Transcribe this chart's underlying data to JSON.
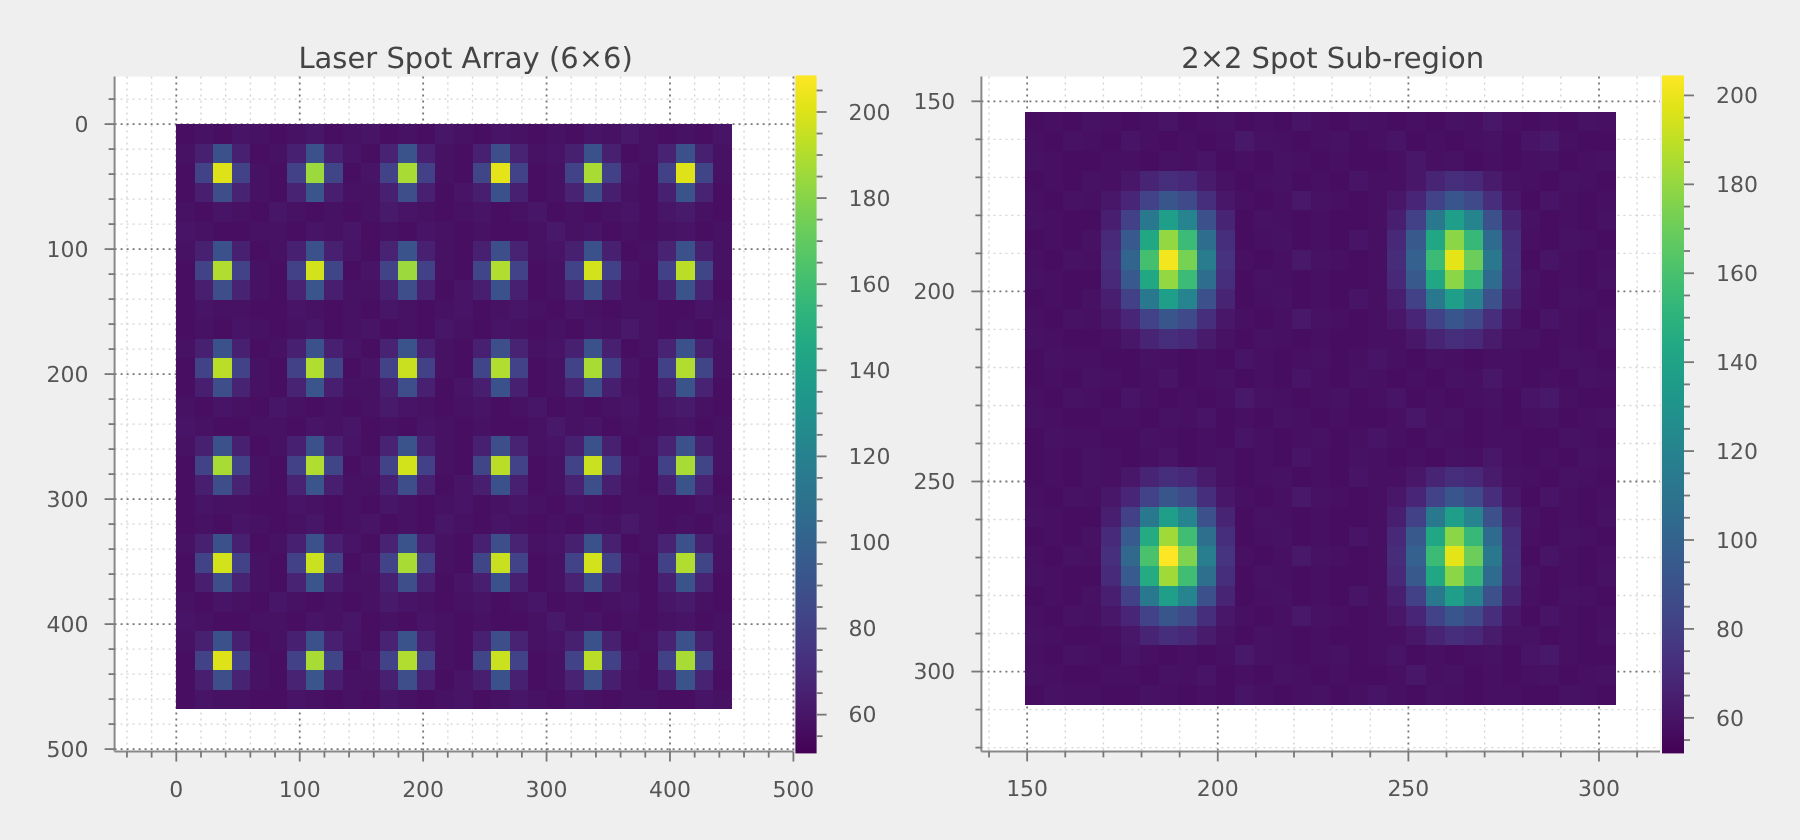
{
  "chart_data": [
    {
      "type": "heatmap",
      "title": "Laser Spot Array (6×6)",
      "x": [
        7.5,
        22.5,
        37.5,
        52.5,
        67.5,
        82.5,
        97.5,
        112.5,
        127.5,
        142.5,
        157.5,
        172.5,
        187.5,
        202.5,
        217.5,
        232.5,
        247.5,
        262.5,
        277.5,
        292.5,
        307.5,
        322.5,
        337.5,
        352.5,
        367.5,
        382.5,
        397.5,
        412.5,
        427.5,
        442.5
      ],
      "y": [
        7.8,
        23.4,
        39,
        54.6,
        70.2,
        85.8,
        101.4,
        117,
        132.6,
        148.2,
        163.8,
        179.4,
        195,
        210.6,
        226.2,
        241.8,
        257.4,
        273,
        288.6,
        304.2,
        319.8,
        335.4,
        351,
        366.6,
        382.2,
        397.8,
        413.4,
        429,
        444.6,
        460.2
      ],
      "cells": [
        [
          57,
          58,
          57,
          59,
          58,
          57,
          58,
          60,
          57,
          58,
          59,
          57,
          58,
          57,
          60,
          58,
          57,
          59,
          58,
          57,
          58,
          57,
          59,
          58,
          61,
          58,
          57,
          58,
          57,
          59
        ],
        [
          58,
          65,
          90,
          65,
          57,
          58,
          65,
          90,
          65,
          59,
          57,
          66,
          91,
          65,
          58,
          57,
          65,
          89,
          66,
          58,
          59,
          65,
          90,
          65,
          57,
          58,
          66,
          90,
          65,
          58
        ],
        [
          57,
          82,
          200,
          82,
          58,
          57,
          81,
          185,
          83,
          57,
          59,
          82,
          188,
          81,
          58,
          57,
          83,
          202,
          82,
          57,
          58,
          82,
          188,
          81,
          59,
          57,
          81,
          200,
          83,
          58
        ],
        [
          57,
          64,
          88,
          66,
          58,
          57,
          66,
          92,
          64,
          58,
          58,
          65,
          88,
          65,
          57,
          59,
          64,
          90,
          65,
          57,
          58,
          66,
          89,
          64,
          58,
          57,
          65,
          91,
          66,
          57
        ],
        [
          58,
          57,
          59,
          58,
          57,
          60,
          58,
          57,
          58,
          57,
          58,
          62,
          59,
          58,
          57,
          58,
          59,
          57,
          58,
          60,
          57,
          58,
          57,
          58,
          59,
          57,
          60,
          62,
          58,
          57
        ],
        [
          59,
          58,
          57,
          57,
          58,
          58,
          57,
          59,
          58,
          60,
          57,
          58,
          57,
          59,
          58,
          57,
          58,
          57,
          57,
          58,
          61,
          58,
          59,
          57,
          58,
          57,
          58,
          59,
          57,
          58
        ],
        [
          58,
          65,
          90,
          65,
          57,
          58,
          65,
          90,
          65,
          59,
          57,
          66,
          91,
          65,
          58,
          57,
          65,
          89,
          66,
          58,
          59,
          65,
          90,
          65,
          57,
          58,
          66,
          90,
          65,
          58
        ],
        [
          57,
          82,
          190,
          82,
          58,
          57,
          81,
          198,
          83,
          57,
          59,
          82,
          185,
          81,
          58,
          57,
          83,
          190,
          82,
          57,
          58,
          82,
          198,
          81,
          59,
          57,
          81,
          192,
          83,
          58
        ],
        [
          57,
          64,
          88,
          66,
          58,
          57,
          66,
          92,
          64,
          58,
          58,
          65,
          88,
          65,
          57,
          59,
          64,
          90,
          65,
          57,
          58,
          66,
          89,
          64,
          58,
          57,
          65,
          91,
          66,
          57
        ],
        [
          57,
          59,
          58,
          58,
          57,
          57,
          59,
          58,
          57,
          58,
          57,
          60,
          58,
          57,
          58,
          59,
          57,
          58,
          60,
          58,
          57,
          59,
          58,
          57,
          58,
          58,
          57,
          57,
          59,
          58
        ],
        [
          57,
          58,
          57,
          59,
          58,
          57,
          58,
          60,
          57,
          58,
          59,
          57,
          58,
          57,
          60,
          58,
          57,
          59,
          58,
          57,
          58,
          57,
          59,
          58,
          61,
          58,
          57,
          58,
          57,
          59
        ],
        [
          58,
          65,
          90,
          65,
          57,
          58,
          65,
          90,
          65,
          59,
          57,
          66,
          91,
          65,
          58,
          57,
          65,
          89,
          66,
          58,
          59,
          65,
          90,
          65,
          57,
          58,
          66,
          90,
          65,
          58
        ],
        [
          57,
          82,
          192,
          82,
          58,
          57,
          81,
          190,
          83,
          57,
          59,
          82,
          195,
          81,
          58,
          57,
          83,
          190,
          82,
          57,
          58,
          82,
          188,
          81,
          59,
          57,
          81,
          190,
          83,
          58
        ],
        [
          57,
          64,
          88,
          66,
          58,
          57,
          66,
          92,
          64,
          58,
          58,
          65,
          88,
          65,
          57,
          59,
          64,
          90,
          65,
          57,
          58,
          66,
          89,
          64,
          58,
          57,
          65,
          91,
          66,
          57
        ],
        [
          58,
          57,
          59,
          58,
          57,
          60,
          58,
          57,
          58,
          57,
          58,
          62,
          59,
          58,
          57,
          58,
          59,
          57,
          58,
          60,
          57,
          58,
          57,
          58,
          59,
          57,
          60,
          62,
          58,
          57
        ],
        [
          59,
          58,
          57,
          57,
          58,
          58,
          57,
          59,
          58,
          60,
          57,
          58,
          57,
          59,
          58,
          57,
          58,
          57,
          57,
          58,
          61,
          58,
          59,
          57,
          58,
          57,
          58,
          59,
          57,
          58
        ],
        [
          58,
          65,
          90,
          65,
          57,
          58,
          65,
          90,
          65,
          59,
          57,
          66,
          91,
          65,
          58,
          57,
          65,
          89,
          66,
          58,
          59,
          65,
          90,
          65,
          57,
          58,
          66,
          90,
          65,
          58
        ],
        [
          57,
          82,
          188,
          82,
          58,
          57,
          81,
          190,
          83,
          57,
          59,
          82,
          198,
          81,
          58,
          57,
          83,
          192,
          82,
          57,
          58,
          82,
          196,
          81,
          59,
          57,
          81,
          188,
          83,
          58
        ],
        [
          57,
          64,
          88,
          66,
          58,
          57,
          66,
          92,
          64,
          58,
          58,
          65,
          88,
          65,
          57,
          59,
          64,
          90,
          65,
          57,
          58,
          66,
          89,
          64,
          58,
          57,
          65,
          91,
          66,
          57
        ],
        [
          57,
          59,
          58,
          58,
          57,
          57,
          59,
          58,
          57,
          58,
          57,
          60,
          58,
          57,
          58,
          59,
          57,
          58,
          60,
          58,
          57,
          59,
          58,
          57,
          58,
          58,
          57,
          57,
          59,
          58
        ],
        [
          57,
          58,
          57,
          59,
          58,
          57,
          58,
          60,
          57,
          58,
          59,
          57,
          58,
          57,
          60,
          58,
          57,
          59,
          58,
          57,
          58,
          57,
          59,
          58,
          61,
          58,
          57,
          58,
          57,
          59
        ],
        [
          58,
          65,
          90,
          65,
          57,
          58,
          65,
          90,
          65,
          59,
          57,
          66,
          91,
          65,
          58,
          57,
          65,
          89,
          66,
          58,
          59,
          65,
          90,
          65,
          57,
          58,
          66,
          90,
          65,
          58
        ],
        [
          57,
          82,
          198,
          82,
          58,
          57,
          81,
          196,
          83,
          57,
          59,
          82,
          188,
          81,
          58,
          57,
          83,
          195,
          82,
          57,
          58,
          82,
          198,
          81,
          59,
          57,
          81,
          190,
          83,
          58
        ],
        [
          57,
          64,
          88,
          66,
          58,
          57,
          66,
          92,
          64,
          58,
          58,
          65,
          88,
          65,
          57,
          59,
          64,
          90,
          65,
          57,
          58,
          66,
          89,
          64,
          58,
          57,
          65,
          91,
          66,
          57
        ],
        [
          58,
          57,
          59,
          58,
          57,
          60,
          58,
          57,
          58,
          57,
          58,
          62,
          59,
          58,
          57,
          58,
          59,
          57,
          58,
          60,
          57,
          58,
          57,
          58,
          59,
          57,
          60,
          62,
          58,
          57
        ],
        [
          59,
          58,
          57,
          57,
          58,
          58,
          57,
          59,
          58,
          60,
          57,
          58,
          57,
          59,
          58,
          57,
          58,
          57,
          57,
          58,
          61,
          58,
          59,
          57,
          58,
          57,
          58,
          59,
          57,
          58
        ],
        [
          58,
          65,
          90,
          65,
          57,
          58,
          65,
          90,
          65,
          59,
          57,
          66,
          91,
          65,
          58,
          57,
          65,
          89,
          66,
          58,
          59,
          65,
          90,
          65,
          57,
          58,
          66,
          90,
          65,
          58
        ],
        [
          57,
          82,
          200,
          82,
          58,
          57,
          81,
          188,
          83,
          57,
          59,
          82,
          190,
          81,
          58,
          57,
          83,
          196,
          82,
          57,
          58,
          82,
          192,
          81,
          59,
          57,
          81,
          188,
          83,
          58
        ],
        [
          57,
          64,
          88,
          66,
          58,
          57,
          66,
          92,
          64,
          58,
          58,
          65,
          88,
          65,
          57,
          59,
          64,
          90,
          65,
          57,
          58,
          66,
          89,
          64,
          58,
          57,
          65,
          91,
          66,
          57
        ],
        [
          57,
          59,
          58,
          58,
          57,
          57,
          59,
          58,
          57,
          58,
          57,
          60,
          58,
          57,
          58,
          59,
          57,
          58,
          60,
          58,
          57,
          59,
          58,
          57,
          58,
          58,
          57,
          57,
          59,
          58
        ]
      ],
      "xlim": [
        -50,
        500
      ],
      "ylim": [
        502,
        -38
      ],
      "xticks": [
        {
          "value": -40,
          "label": null
        },
        {
          "value": -20,
          "label": null
        },
        0,
        {
          "value": 20,
          "label": null
        },
        {
          "value": 40,
          "label": null
        },
        {
          "value": 60,
          "label": null
        },
        {
          "value": 80,
          "label": null
        },
        100,
        {
          "value": 120,
          "label": null
        },
        {
          "value": 140,
          "label": null
        },
        {
          "value": 160,
          "label": null
        },
        {
          "value": 180,
          "label": null
        },
        200,
        {
          "value": 220,
          "label": null
        },
        {
          "value": 240,
          "label": null
        },
        {
          "value": 260,
          "label": null
        },
        {
          "value": 280,
          "label": null
        },
        300,
        {
          "value": 320,
          "label": null
        },
        {
          "value": 340,
          "label": null
        },
        {
          "value": 360,
          "label": null
        },
        {
          "value": 380,
          "label": null
        },
        400,
        {
          "value": 420,
          "label": null
        },
        {
          "value": 440,
          "label": null
        },
        {
          "value": 460,
          "label": null
        },
        {
          "value": 480,
          "label": null
        },
        500
      ],
      "yticks": [
        {
          "value": -20,
          "label": null
        },
        0,
        {
          "value": 20,
          "label": null
        },
        {
          "value": 40,
          "label": null
        },
        {
          "value": 60,
          "label": null
        },
        {
          "value": 80,
          "label": null
        },
        100,
        {
          "value": 120,
          "label": null
        },
        {
          "value": 140,
          "label": null
        },
        {
          "value": 160,
          "label": null
        },
        {
          "value": 180,
          "label": null
        },
        200,
        {
          "value": 220,
          "label": null
        },
        {
          "value": 240,
          "label": null
        },
        {
          "value": 260,
          "label": null
        },
        {
          "value": 280,
          "label": null
        },
        300,
        {
          "value": 320,
          "label": null
        },
        {
          "value": 340,
          "label": null
        },
        {
          "value": 360,
          "label": null
        },
        {
          "value": 380,
          "label": null
        },
        400,
        {
          "value": 420,
          "label": null
        },
        {
          "value": 440,
          "label": null
        },
        {
          "value": 460,
          "label": null
        },
        {
          "value": 480,
          "label": null
        },
        500
      ],
      "clim": [
        51,
        208.5
      ],
      "cticks": [
        {
          "value": 55,
          "label": null
        },
        60,
        {
          "value": 65,
          "label": null
        },
        {
          "value": 70,
          "label": null
        },
        {
          "value": 75,
          "label": null
        },
        80,
        {
          "value": 85,
          "label": null
        },
        {
          "value": 90,
          "label": null
        },
        {
          "value": 95,
          "label": null
        },
        100,
        {
          "value": 105,
          "label": null
        },
        {
          "value": 110,
          "label": null
        },
        {
          "value": 115,
          "label": null
        },
        120,
        {
          "value": 125,
          "label": null
        },
        {
          "value": 130,
          "label": null
        },
        {
          "value": 135,
          "label": null
        },
        140,
        {
          "value": 145,
          "label": null
        },
        {
          "value": 150,
          "label": null
        },
        {
          "value": 155,
          "label": null
        },
        160,
        {
          "value": 165,
          "label": null
        },
        {
          "value": 170,
          "label": null
        },
        {
          "value": 175,
          "label": null
        },
        180,
        {
          "value": 185,
          "label": null
        },
        {
          "value": 190,
          "label": null
        },
        {
          "value": 195,
          "label": null
        },
        200,
        {
          "value": 205,
          "label": null
        }
      ],
      "grid": true
    },
    {
      "type": "heatmap",
      "title": "2×2 Spot Sub-region",
      "x": [
        152,
        157,
        162,
        167,
        172,
        177,
        182,
        187,
        192,
        197,
        202,
        207,
        212,
        217,
        222,
        227,
        232,
        237,
        242,
        247,
        252,
        257,
        262,
        267,
        272,
        277,
        282,
        287,
        292,
        297,
        302
      ],
      "y": [
        155.3,
        160.5,
        165.7,
        170.9,
        176.1,
        181.3,
        186.5,
        191.7,
        196.9,
        202.1,
        207.3,
        212.5,
        217.7,
        222.9,
        228.1,
        233.3,
        238.5,
        243.7,
        248.9,
        254.1,
        259.3,
        264.5,
        269.7,
        274.9,
        280.1,
        285.3,
        290.5,
        295.7,
        300.9,
        306.1
      ],
      "cells": [
        [
          57,
          58,
          57,
          59,
          58,
          57,
          58,
          60,
          57,
          58,
          59,
          57,
          58,
          57,
          60,
          58,
          57,
          59,
          58,
          57,
          58,
          57,
          59,
          58,
          61,
          58,
          57,
          58,
          57,
          59,
          58
        ],
        [
          58,
          57,
          59,
          58,
          57,
          60,
          58,
          57,
          58,
          57,
          58,
          62,
          59,
          58,
          57,
          58,
          59,
          57,
          58,
          60,
          57,
          58,
          57,
          58,
          59,
          57,
          60,
          62,
          58,
          57,
          57
        ],
        [
          59,
          58,
          57,
          57,
          58,
          58,
          57,
          59,
          58,
          60,
          57,
          58,
          57,
          59,
          58,
          57,
          58,
          57,
          57,
          58,
          61,
          58,
          59,
          57,
          58,
          57,
          58,
          59,
          57,
          58,
          59
        ],
        [
          57,
          58,
          57,
          59,
          58,
          61,
          67,
          72,
          69,
          63,
          59,
          57,
          58,
          59,
          57,
          58,
          57,
          60,
          58,
          58,
          61,
          67,
          72,
          69,
          63,
          59,
          58,
          57,
          59,
          58,
          57
        ],
        [
          58,
          57,
          59,
          58,
          61,
          68,
          82,
          93,
          86,
          72,
          61,
          58,
          57,
          58,
          62,
          59,
          58,
          57,
          58,
          61,
          68,
          82,
          93,
          86,
          72,
          61,
          57,
          60,
          58,
          57,
          58
        ],
        [
          59,
          58,
          57,
          57,
          65,
          81,
          113,
          137,
          121,
          89,
          67,
          57,
          59,
          58,
          57,
          58,
          57,
          57,
          58,
          65,
          81,
          113,
          137,
          121,
          89,
          67,
          59,
          57,
          58,
          57,
          59
        ],
        [
          57,
          58,
          57,
          59,
          69,
          94,
          143,
          180,
          156,
          106,
          72,
          57,
          58,
          59,
          57,
          58,
          57,
          60,
          58,
          69,
          94,
          143,
          178,
          154,
          105,
          72,
          58,
          57,
          59,
          58,
          57
        ],
        [
          58,
          57,
          59,
          58,
          72,
          101,
          159,
          202,
          173,
          115,
          74,
          58,
          57,
          58,
          62,
          59,
          58,
          57,
          58,
          71,
          99,
          156,
          198,
          170,
          113,
          73,
          57,
          60,
          58,
          57,
          58
        ],
        [
          59,
          58,
          57,
          57,
          69,
          94,
          143,
          180,
          156,
          106,
          72,
          57,
          59,
          58,
          57,
          58,
          57,
          57,
          58,
          69,
          94,
          143,
          178,
          154,
          105,
          72,
          59,
          57,
          58,
          57,
          59
        ],
        [
          57,
          58,
          57,
          59,
          65,
          81,
          113,
          137,
          121,
          89,
          67,
          57,
          58,
          59,
          57,
          58,
          57,
          60,
          58,
          65,
          81,
          113,
          137,
          121,
          89,
          67,
          58,
          57,
          59,
          58,
          57
        ],
        [
          58,
          57,
          59,
          58,
          61,
          68,
          82,
          93,
          86,
          72,
          61,
          58,
          57,
          58,
          62,
          59,
          58,
          57,
          58,
          61,
          68,
          82,
          93,
          86,
          72,
          61,
          57,
          60,
          58,
          57,
          58
        ],
        [
          59,
          58,
          57,
          57,
          58,
          61,
          67,
          72,
          69,
          63,
          59,
          57,
          59,
          58,
          57,
          58,
          57,
          57,
          58,
          58,
          61,
          67,
          72,
          69,
          63,
          59,
          59,
          57,
          58,
          57,
          59
        ],
        [
          57,
          59,
          58,
          58,
          57,
          57,
          59,
          58,
          57,
          58,
          57,
          60,
          58,
          57,
          58,
          59,
          57,
          58,
          60,
          58,
          57,
          59,
          58,
          57,
          58,
          58,
          57,
          57,
          59,
          58,
          57
        ],
        [
          57,
          58,
          57,
          59,
          58,
          57,
          58,
          60,
          57,
          58,
          59,
          57,
          58,
          57,
          60,
          58,
          57,
          59,
          58,
          57,
          58,
          57,
          59,
          58,
          61,
          58,
          57,
          58,
          57,
          59,
          58
        ],
        [
          58,
          57,
          59,
          58,
          57,
          60,
          58,
          57,
          58,
          57,
          58,
          62,
          59,
          58,
          57,
          58,
          59,
          57,
          58,
          60,
          57,
          58,
          57,
          58,
          59,
          57,
          60,
          62,
          58,
          57,
          57
        ],
        [
          59,
          58,
          57,
          57,
          58,
          58,
          57,
          59,
          58,
          60,
          57,
          58,
          57,
          59,
          58,
          57,
          58,
          57,
          57,
          58,
          61,
          58,
          59,
          57,
          58,
          57,
          58,
          59,
          57,
          58,
          59
        ],
        [
          57,
          59,
          58,
          58,
          57,
          57,
          59,
          58,
          57,
          58,
          57,
          60,
          58,
          57,
          58,
          59,
          57,
          58,
          60,
          58,
          57,
          59,
          58,
          57,
          58,
          58,
          57,
          57,
          59,
          58,
          57
        ],
        [
          57,
          58,
          57,
          59,
          58,
          57,
          58,
          60,
          57,
          58,
          59,
          57,
          58,
          57,
          60,
          58,
          57,
          59,
          58,
          57,
          58,
          57,
          59,
          58,
          61,
          58,
          57,
          58,
          57,
          59,
          58
        ],
        [
          57,
          58,
          57,
          59,
          58,
          61,
          67,
          72,
          69,
          63,
          59,
          57,
          58,
          59,
          57,
          58,
          57,
          60,
          58,
          58,
          61,
          67,
          72,
          69,
          63,
          59,
          58,
          57,
          59,
          58,
          57
        ],
        [
          58,
          57,
          59,
          58,
          61,
          68,
          82,
          93,
          86,
          72,
          61,
          58,
          57,
          58,
          62,
          59,
          58,
          57,
          58,
          61,
          68,
          82,
          93,
          86,
          72,
          61,
          57,
          60,
          58,
          57,
          58
        ],
        [
          59,
          58,
          57,
          57,
          65,
          81,
          113,
          137,
          121,
          89,
          67,
          57,
          59,
          58,
          57,
          58,
          57,
          57,
          58,
          65,
          81,
          113,
          137,
          121,
          89,
          67,
          59,
          57,
          58,
          57,
          59
        ],
        [
          57,
          58,
          57,
          59,
          70,
          95,
          145,
          183,
          158,
          107,
          72,
          57,
          58,
          59,
          57,
          58,
          57,
          60,
          58,
          69,
          94,
          143,
          178,
          154,
          105,
          72,
          58,
          57,
          59,
          58,
          57
        ],
        [
          58,
          57,
          59,
          58,
          73,
          103,
          161,
          204,
          175,
          116,
          75,
          58,
          57,
          58,
          62,
          59,
          58,
          57,
          58,
          71,
          99,
          156,
          198,
          170,
          113,
          73,
          57,
          60,
          58,
          57,
          58
        ],
        [
          59,
          58,
          57,
          57,
          70,
          95,
          145,
          183,
          158,
          107,
          72,
          57,
          59,
          58,
          57,
          58,
          57,
          57,
          58,
          69,
          94,
          143,
          178,
          154,
          105,
          72,
          59,
          57,
          58,
          57,
          59
        ],
        [
          57,
          58,
          57,
          59,
          65,
          81,
          113,
          137,
          121,
          89,
          67,
          57,
          58,
          59,
          57,
          58,
          57,
          60,
          58,
          65,
          81,
          113,
          137,
          121,
          89,
          67,
          58,
          57,
          59,
          58,
          57
        ],
        [
          58,
          57,
          59,
          58,
          61,
          68,
          82,
          93,
          86,
          72,
          61,
          58,
          57,
          58,
          62,
          59,
          58,
          57,
          58,
          61,
          68,
          82,
          93,
          86,
          72,
          61,
          57,
          60,
          58,
          57,
          58
        ],
        [
          59,
          58,
          57,
          57,
          58,
          61,
          67,
          72,
          69,
          63,
          59,
          57,
          59,
          58,
          57,
          58,
          57,
          57,
          58,
          58,
          61,
          67,
          72,
          69,
          63,
          59,
          59,
          57,
          58,
          57,
          59
        ],
        [
          58,
          57,
          59,
          58,
          57,
          60,
          58,
          57,
          58,
          57,
          58,
          62,
          59,
          58,
          57,
          58,
          59,
          57,
          58,
          60,
          57,
          58,
          57,
          58,
          59,
          57,
          60,
          62,
          58,
          57,
          57
        ],
        [
          59,
          58,
          57,
          57,
          58,
          58,
          57,
          59,
          58,
          60,
          57,
          58,
          57,
          59,
          58,
          57,
          58,
          57,
          57,
          58,
          61,
          58,
          59,
          57,
          58,
          57,
          58,
          59,
          57,
          58,
          59
        ],
        [
          57,
          59,
          58,
          58,
          57,
          57,
          59,
          58,
          57,
          58,
          57,
          60,
          58,
          57,
          58,
          59,
          57,
          58,
          60,
          58,
          57,
          59,
          58,
          57,
          58,
          58,
          57,
          57,
          59,
          58,
          57
        ]
      ],
      "xlim": [
        138,
        316
      ],
      "ylim": [
        321,
        143.5
      ],
      "xticks": [
        {
          "value": 140,
          "label": null
        },
        150,
        {
          "value": 160,
          "label": null
        },
        {
          "value": 170,
          "label": null
        },
        {
          "value": 180,
          "label": null
        },
        {
          "value": 190,
          "label": null
        },
        200,
        {
          "value": 210,
          "label": null
        },
        {
          "value": 220,
          "label": null
        },
        {
          "value": 230,
          "label": null
        },
        {
          "value": 240,
          "label": null
        },
        250,
        {
          "value": 260,
          "label": null
        },
        {
          "value": 270,
          "label": null
        },
        {
          "value": 280,
          "label": null
        },
        {
          "value": 290,
          "label": null
        },
        300,
        {
          "value": 310,
          "label": null
        }
      ],
      "yticks": [
        150,
        {
          "value": 160,
          "label": null
        },
        {
          "value": 170,
          "label": null
        },
        {
          "value": 180,
          "label": null
        },
        {
          "value": 190,
          "label": null
        },
        200,
        {
          "value": 210,
          "label": null
        },
        {
          "value": 220,
          "label": null
        },
        {
          "value": 230,
          "label": null
        },
        {
          "value": 240,
          "label": null
        },
        250,
        {
          "value": 260,
          "label": null
        },
        {
          "value": 270,
          "label": null
        },
        {
          "value": 280,
          "label": null
        },
        {
          "value": 290,
          "label": null
        },
        300,
        {
          "value": 310,
          "label": null
        },
        {
          "value": 320,
          "label": null
        }
      ],
      "clim": [
        52,
        204.5
      ],
      "cticks": [
        {
          "value": 55,
          "label": null
        },
        60,
        {
          "value": 65,
          "label": null
        },
        {
          "value": 70,
          "label": null
        },
        {
          "value": 75,
          "label": null
        },
        80,
        {
          "value": 85,
          "label": null
        },
        {
          "value": 90,
          "label": null
        },
        {
          "value": 95,
          "label": null
        },
        100,
        {
          "value": 105,
          "label": null
        },
        {
          "value": 110,
          "label": null
        },
        {
          "value": 115,
          "label": null
        },
        120,
        {
          "value": 125,
          "label": null
        },
        {
          "value": 130,
          "label": null
        },
        {
          "value": 135,
          "label": null
        },
        140,
        {
          "value": 145,
          "label": null
        },
        {
          "value": 150,
          "label": null
        },
        {
          "value": 155,
          "label": null
        },
        160,
        {
          "value": 165,
          "label": null
        },
        {
          "value": 170,
          "label": null
        },
        {
          "value": 175,
          "label": null
        },
        180,
        {
          "value": 185,
          "label": null
        },
        {
          "value": 190,
          "label": null
        },
        {
          "value": 195,
          "label": null
        },
        200
      ],
      "grid": true
    }
  ]
}
